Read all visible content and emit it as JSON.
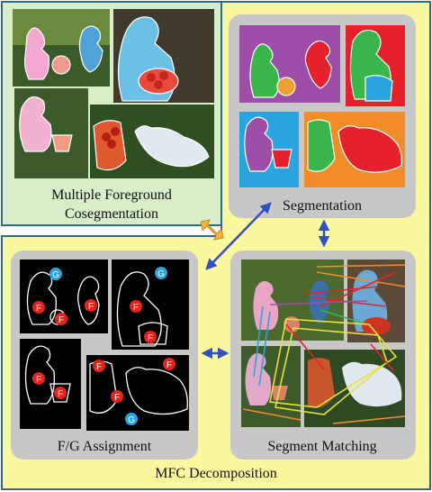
{
  "panels": {
    "cosegmentation": {
      "title_line1": "Multiple Foreground",
      "title_line2": "Cosegmentation"
    },
    "segmentation": {
      "label": "Segmentation"
    },
    "assignment": {
      "label": "F/G Assignment"
    },
    "matching": {
      "label": "Segment Matching"
    },
    "decomposition": {
      "label": "MFC Decomposition"
    }
  },
  "markers": {
    "foreground": "F",
    "background": "G"
  },
  "colors": {
    "outer_green": "#d7eec9",
    "yellow_frame": "#fbf79e",
    "panel_gray": "#c7c7c7",
    "arrow_blue": "#2f4fc4",
    "arrow_orange": "#f3b234",
    "marker_red": "#e8221b",
    "marker_blue": "#2aa4e0"
  }
}
